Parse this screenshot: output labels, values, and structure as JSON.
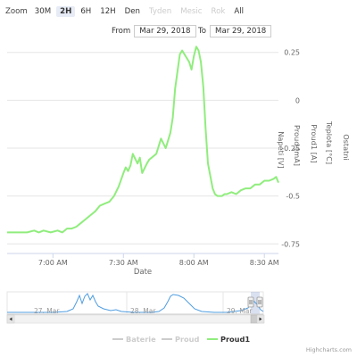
{
  "range_selector": {
    "zoom_label": "Zoom",
    "buttons": [
      {
        "label": "30M",
        "state": "normal"
      },
      {
        "label": "2H",
        "state": "active"
      },
      {
        "label": "6H",
        "state": "normal"
      },
      {
        "label": "12H",
        "state": "normal"
      },
      {
        "label": "Den",
        "state": "normal"
      },
      {
        "label": "Tyden",
        "state": "disabled"
      },
      {
        "label": "Mesic",
        "state": "disabled"
      },
      {
        "label": "Rok",
        "state": "disabled"
      },
      {
        "label": "All",
        "state": "normal"
      }
    ],
    "from_label": "From",
    "from_value": "Mar 29, 2018",
    "to_label": "To",
    "to_value": "Mar 29, 2018"
  },
  "chart_data": {
    "type": "line",
    "xlabel": "Date",
    "x_ticks": [
      "7:00 AM",
      "7:30 AM",
      "8:00 AM",
      "8:30 AM"
    ],
    "x_tick_minutes": [
      420,
      450,
      480,
      510
    ],
    "x_range_minutes": [
      400.5,
      516
    ],
    "y_ticks": [
      "0.25",
      "0",
      "-0.25",
      "-0.5",
      "-0.75"
    ],
    "y_tick_values": [
      0.25,
      0,
      -0.25,
      -0.5,
      -0.75
    ],
    "ylim": [
      -0.8,
      0.3
    ],
    "axis_titles": [
      "Napeti [V]",
      "Proud [mA]",
      "Proud1 [A]",
      "Teplota [°C]",
      "Ostatni"
    ],
    "series": [
      {
        "name": "Proud1",
        "color": "#90ed7d",
        "x": [
          400.5,
          405,
          409,
          412,
          414,
          416,
          419,
          422,
          424,
          426,
          428,
          430,
          432,
          434,
          436,
          438,
          440,
          442,
          444,
          446,
          448,
          450,
          451,
          452,
          453,
          454,
          456,
          457,
          458,
          460,
          461,
          462,
          464,
          466,
          468,
          470,
          471,
          472,
          474,
          475,
          476,
          478,
          479,
          480,
          481,
          482,
          483,
          484,
          485,
          486,
          488,
          489,
          490,
          492,
          493,
          494,
          496,
          498,
          500,
          502,
          504,
          506,
          508,
          510,
          512,
          514,
          515,
          516
        ],
        "y": [
          -0.69,
          -0.69,
          -0.69,
          -0.68,
          -0.69,
          -0.68,
          -0.69,
          -0.68,
          -0.69,
          -0.67,
          -0.67,
          -0.66,
          -0.64,
          -0.62,
          -0.6,
          -0.58,
          -0.55,
          -0.54,
          -0.53,
          -0.5,
          -0.45,
          -0.38,
          -0.35,
          -0.37,
          -0.34,
          -0.28,
          -0.33,
          -0.3,
          -0.38,
          -0.33,
          -0.31,
          -0.3,
          -0.28,
          -0.2,
          -0.25,
          -0.17,
          -0.09,
          0.06,
          0.24,
          0.26,
          0.24,
          0.2,
          0.16,
          0.23,
          0.28,
          0.26,
          0.2,
          0.07,
          -0.15,
          -0.33,
          -0.46,
          -0.49,
          -0.5,
          -0.5,
          -0.49,
          -0.49,
          -0.48,
          -0.49,
          -0.47,
          -0.46,
          -0.46,
          -0.44,
          -0.44,
          -0.42,
          -0.42,
          -0.41,
          -0.4,
          -0.43
        ]
      }
    ],
    "navigator": {
      "labels": [
        "27. Mar",
        "28. Mar",
        "29. Mar"
      ],
      "line_color": "#4f9de0"
    },
    "legend": {
      "placement": "bottom",
      "items": [
        {
          "name": "Baterie",
          "visible": false
        },
        {
          "name": "Proud",
          "visible": false
        },
        {
          "name": "Proud1",
          "visible": true
        }
      ]
    },
    "grid": true
  },
  "credits": "Highcharts.com"
}
